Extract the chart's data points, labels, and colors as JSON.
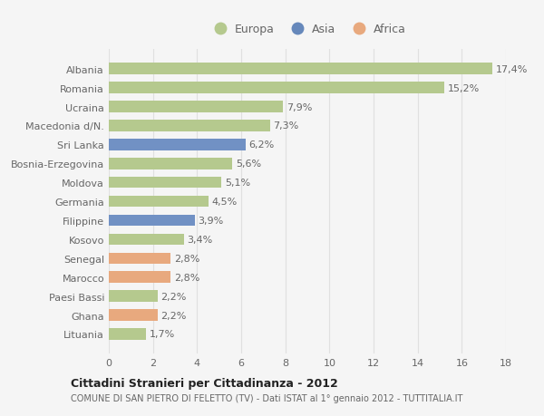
{
  "categories": [
    "Albania",
    "Romania",
    "Ucraina",
    "Macedonia d/N.",
    "Sri Lanka",
    "Bosnia-Erzegovina",
    "Moldova",
    "Germania",
    "Filippine",
    "Kosovo",
    "Senegal",
    "Marocco",
    "Paesi Bassi",
    "Ghana",
    "Lituania"
  ],
  "values": [
    17.4,
    15.2,
    7.9,
    7.3,
    6.2,
    5.6,
    5.1,
    4.5,
    3.9,
    3.4,
    2.8,
    2.8,
    2.2,
    2.2,
    1.7
  ],
  "labels": [
    "17,4%",
    "15,2%",
    "7,9%",
    "7,3%",
    "6,2%",
    "5,6%",
    "5,1%",
    "4,5%",
    "3,9%",
    "3,4%",
    "2,8%",
    "2,8%",
    "2,2%",
    "2,2%",
    "1,7%"
  ],
  "continents": [
    "Europa",
    "Europa",
    "Europa",
    "Europa",
    "Asia",
    "Europa",
    "Europa",
    "Europa",
    "Asia",
    "Europa",
    "Africa",
    "Africa",
    "Europa",
    "Africa",
    "Europa"
  ],
  "colors": {
    "Europa": "#b5c98e",
    "Asia": "#7191c4",
    "Africa": "#e8a97e"
  },
  "legend_colors": {
    "Europa": "#b5c98e",
    "Asia": "#6688bb",
    "Africa": "#e8a97e"
  },
  "title": "Cittadini Stranieri per Cittadinanza - 2012",
  "subtitle": "COMUNE DI SAN PIETRO DI FELETTO (TV) - Dati ISTAT al 1° gennaio 2012 - TUTTITALIA.IT",
  "xlim": [
    0,
    18
  ],
  "xticks": [
    0,
    2,
    4,
    6,
    8,
    10,
    12,
    14,
    16,
    18
  ],
  "background_color": "#f5f5f5",
  "grid_color": "#e0e0e0",
  "bar_height": 0.6,
  "label_fontsize": 8,
  "tick_fontsize": 8
}
